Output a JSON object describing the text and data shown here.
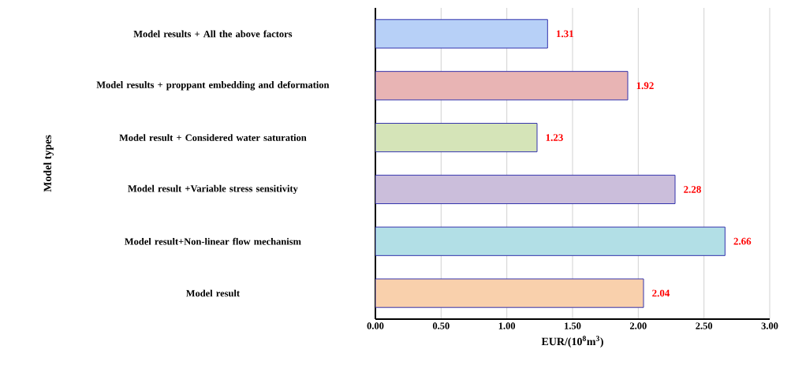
{
  "chart_data": {
    "type": "bar",
    "orientation": "horizontal",
    "xlabel": "EUR/(10$^{8}$m$^{3}$)",
    "ylabel": "Model types",
    "categories": [
      "Model results + All the above factors",
      "Model results + proppant embedding and deformation",
      "Model result + Considered water saturation",
      "Model result +Variable stress sensitivity",
      "Model result+Non-linear flow mechanism",
      "Model result"
    ],
    "values": [
      1.31,
      1.92,
      1.23,
      2.28,
      2.66,
      2.04
    ],
    "colors": [
      "#b7d0f7",
      "#e8b4b4",
      "#d5e4b8",
      "#cbbedb",
      "#b2dfe6",
      "#f9d0ac"
    ],
    "xlim": [
      0,
      3
    ],
    "xticks": [
      {
        "value": 0,
        "label": "0.00"
      },
      {
        "value": 0.5,
        "label": "0.50"
      },
      {
        "value": 1,
        "label": "1.00"
      },
      {
        "value": 1.5,
        "label": "1.50"
      },
      {
        "value": 2,
        "label": "2.00"
      },
      {
        "value": 2.5,
        "label": "2.50"
      },
      {
        "value": 3,
        "label": "3.00"
      }
    ],
    "grid": "x",
    "data_labels": true
  }
}
